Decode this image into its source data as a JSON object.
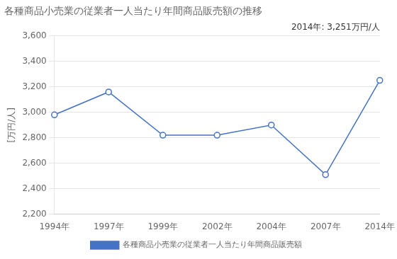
{
  "chart_data": {
    "type": "line",
    "title": "各種商品小売業の従業者一人当たり年間商品販売額の推移",
    "ylabel": "[万円/人]",
    "annotation": "2014年: 3,251万円/人",
    "categories": [
      "1994年",
      "1997年",
      "1999年",
      "2002年",
      "2004年",
      "2007年",
      "2014年"
    ],
    "series": [
      {
        "name": "各種商品小売業の従業者一人当たり年間商品販売額",
        "color": "#4472C4",
        "marker": "circle",
        "values": [
          2980,
          3160,
          2820,
          2820,
          2900,
          2510,
          3251
        ]
      }
    ],
    "ylim": [
      2200,
      3600
    ],
    "yticks": [
      {
        "value": 2200,
        "label": "2,200"
      },
      {
        "value": 2400,
        "label": "2,400"
      },
      {
        "value": 2600,
        "label": "2,600"
      },
      {
        "value": 2800,
        "label": "2,800"
      },
      {
        "value": 3000,
        "label": "3,000"
      },
      {
        "value": 3200,
        "label": "3,200"
      },
      {
        "value": 3400,
        "label": "3,400"
      },
      {
        "value": 3600,
        "label": "3,600"
      }
    ],
    "grid": true,
    "legend": "bottom"
  }
}
